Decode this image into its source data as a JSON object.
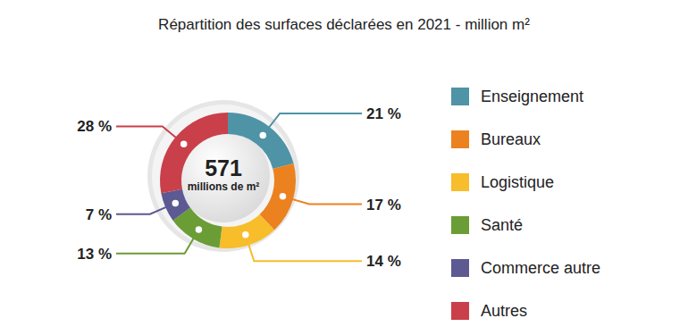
{
  "chart_data": {
    "type": "pie",
    "title": "Répartition des surfaces déclarées en 2021 - million m²",
    "total": 571,
    "total_label": "millions de m²",
    "categories": [
      "Enseignement",
      "Bureaux",
      "Logistique",
      "Santé",
      "Commerce autre",
      "Autres"
    ],
    "values": [
      21,
      17,
      14,
      13,
      7,
      28
    ],
    "value_labels": [
      "21 %",
      "17 %",
      "14 %",
      "13 %",
      "7 %",
      "28 %"
    ],
    "colors": [
      "#4f93a6",
      "#ec8120",
      "#f7bd2a",
      "#6a9d36",
      "#5d5992",
      "#c9404a"
    ],
    "data_labels": true,
    "legend": "right"
  }
}
